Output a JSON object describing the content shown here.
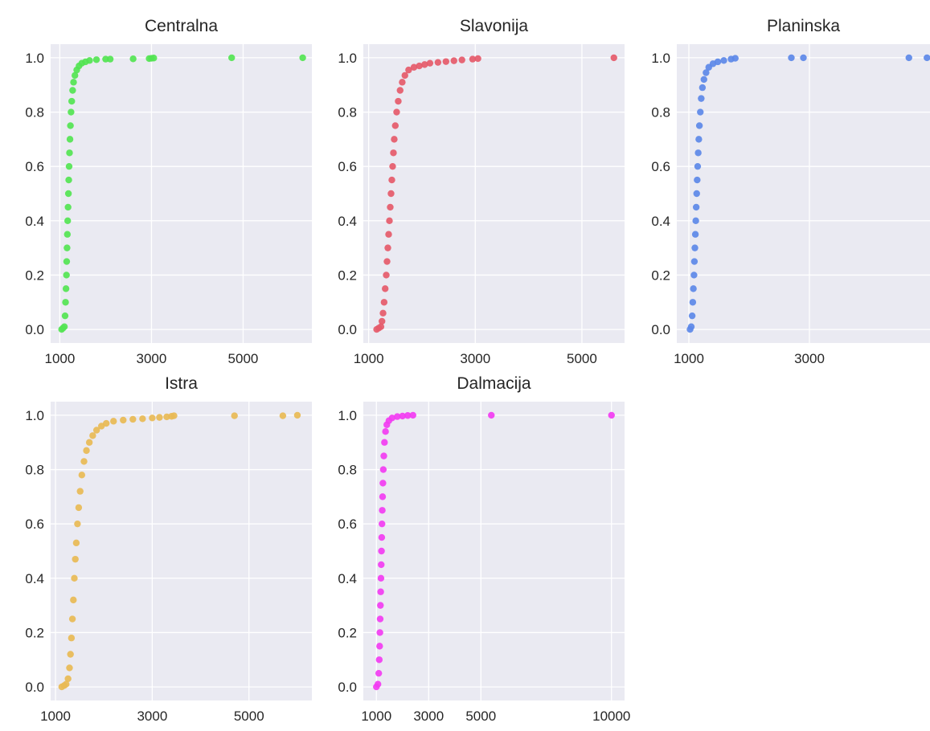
{
  "chart_data": [
    {
      "type": "scatter",
      "title": "Centralna",
      "color": "#53e453",
      "xlim": [
        800,
        6500
      ],
      "ylim": [
        -0.05,
        1.05
      ],
      "xticks": [
        1000,
        3000,
        5000
      ],
      "yticks": [
        0.0,
        0.2,
        0.4,
        0.6,
        0.8,
        1.0
      ],
      "points": [
        [
          1040,
          0.0
        ],
        [
          1070,
          0.005
        ],
        [
          1100,
          0.01
        ],
        [
          1115,
          0.05
        ],
        [
          1125,
          0.1
        ],
        [
          1135,
          0.15
        ],
        [
          1145,
          0.2
        ],
        [
          1150,
          0.25
        ],
        [
          1158,
          0.3
        ],
        [
          1165,
          0.35
        ],
        [
          1172,
          0.4
        ],
        [
          1180,
          0.45
        ],
        [
          1188,
          0.5
        ],
        [
          1195,
          0.55
        ],
        [
          1203,
          0.6
        ],
        [
          1212,
          0.65
        ],
        [
          1222,
          0.7
        ],
        [
          1232,
          0.75
        ],
        [
          1245,
          0.8
        ],
        [
          1260,
          0.84
        ],
        [
          1280,
          0.88
        ],
        [
          1300,
          0.91
        ],
        [
          1330,
          0.935
        ],
        [
          1370,
          0.955
        ],
        [
          1420,
          0.97
        ],
        [
          1480,
          0.98
        ],
        [
          1560,
          0.985
        ],
        [
          1650,
          0.99
        ],
        [
          1800,
          0.993
        ],
        [
          2000,
          0.995
        ],
        [
          2100,
          0.995
        ],
        [
          2600,
          0.996
        ],
        [
          2950,
          0.997
        ],
        [
          3000,
          0.998
        ],
        [
          3050,
          0.999
        ],
        [
          4750,
          1.0
        ],
        [
          6300,
          1.0
        ]
      ]
    },
    {
      "type": "scatter",
      "title": "Slavonija",
      "color": "#e55a6a",
      "xlim": [
        900,
        5800
      ],
      "ylim": [
        -0.05,
        1.05
      ],
      "xticks": [
        1000,
        3000,
        5000
      ],
      "yticks": [
        0.0,
        0.2,
        0.4,
        0.6,
        0.8,
        1.0
      ],
      "points": [
        [
          1150,
          0.0
        ],
        [
          1190,
          0.005
        ],
        [
          1230,
          0.01
        ],
        [
          1250,
          0.03
        ],
        [
          1270,
          0.06
        ],
        [
          1290,
          0.1
        ],
        [
          1310,
          0.15
        ],
        [
          1330,
          0.2
        ],
        [
          1345,
          0.25
        ],
        [
          1360,
          0.3
        ],
        [
          1375,
          0.35
        ],
        [
          1390,
          0.4
        ],
        [
          1405,
          0.45
        ],
        [
          1420,
          0.5
        ],
        [
          1435,
          0.55
        ],
        [
          1450,
          0.6
        ],
        [
          1465,
          0.65
        ],
        [
          1480,
          0.7
        ],
        [
          1500,
          0.75
        ],
        [
          1525,
          0.8
        ],
        [
          1555,
          0.84
        ],
        [
          1590,
          0.88
        ],
        [
          1630,
          0.91
        ],
        [
          1680,
          0.935
        ],
        [
          1750,
          0.955
        ],
        [
          1850,
          0.965
        ],
        [
          1950,
          0.97
        ],
        [
          2050,
          0.975
        ],
        [
          2150,
          0.98
        ],
        [
          2300,
          0.983
        ],
        [
          2450,
          0.986
        ],
        [
          2600,
          0.989
        ],
        [
          2750,
          0.992
        ],
        [
          2950,
          0.995
        ],
        [
          3050,
          0.997
        ],
        [
          5600,
          1.0
        ]
      ]
    },
    {
      "type": "scatter",
      "title": "Planinska",
      "color": "#5c88e8",
      "xlim": [
        800,
        5000
      ],
      "ylim": [
        -0.05,
        1.05
      ],
      "xticks": [
        1000,
        3000
      ],
      "yticks": [
        0.0,
        0.2,
        0.4,
        0.6,
        0.8,
        1.0
      ],
      "points": [
        [
          1020,
          0.0
        ],
        [
          1040,
          0.01
        ],
        [
          1055,
          0.05
        ],
        [
          1065,
          0.1
        ],
        [
          1075,
          0.15
        ],
        [
          1085,
          0.2
        ],
        [
          1092,
          0.25
        ],
        [
          1100,
          0.3
        ],
        [
          1108,
          0.35
        ],
        [
          1115,
          0.4
        ],
        [
          1122,
          0.45
        ],
        [
          1130,
          0.5
        ],
        [
          1138,
          0.55
        ],
        [
          1146,
          0.6
        ],
        [
          1155,
          0.65
        ],
        [
          1165,
          0.7
        ],
        [
          1175,
          0.75
        ],
        [
          1190,
          0.8
        ],
        [
          1205,
          0.85
        ],
        [
          1225,
          0.89
        ],
        [
          1250,
          0.92
        ],
        [
          1285,
          0.945
        ],
        [
          1330,
          0.965
        ],
        [
          1400,
          0.978
        ],
        [
          1480,
          0.985
        ],
        [
          1580,
          0.99
        ],
        [
          1700,
          0.995
        ],
        [
          1770,
          0.998
        ],
        [
          2700,
          1.0
        ],
        [
          2900,
          1.0
        ],
        [
          4650,
          1.0
        ],
        [
          4950,
          1.0
        ]
      ]
    },
    {
      "type": "scatter",
      "title": "Istra",
      "color": "#e8ba55",
      "xlim": [
        900,
        6300
      ],
      "ylim": [
        -0.05,
        1.05
      ],
      "xticks": [
        1000,
        3000,
        5000
      ],
      "yticks": [
        0.0,
        0.2,
        0.4,
        0.6,
        0.8,
        1.0
      ],
      "points": [
        [
          1130,
          0.0
        ],
        [
          1180,
          0.005
        ],
        [
          1220,
          0.01
        ],
        [
          1260,
          0.03
        ],
        [
          1290,
          0.07
        ],
        [
          1310,
          0.12
        ],
        [
          1330,
          0.18
        ],
        [
          1350,
          0.25
        ],
        [
          1370,
          0.32
        ],
        [
          1390,
          0.4
        ],
        [
          1410,
          0.47
        ],
        [
          1430,
          0.53
        ],
        [
          1455,
          0.6
        ],
        [
          1480,
          0.66
        ],
        [
          1510,
          0.72
        ],
        [
          1545,
          0.78
        ],
        [
          1590,
          0.83
        ],
        [
          1640,
          0.87
        ],
        [
          1700,
          0.9
        ],
        [
          1770,
          0.925
        ],
        [
          1850,
          0.945
        ],
        [
          1950,
          0.96
        ],
        [
          2050,
          0.97
        ],
        [
          2200,
          0.978
        ],
        [
          2400,
          0.982
        ],
        [
          2600,
          0.985
        ],
        [
          2800,
          0.987
        ],
        [
          3000,
          0.99
        ],
        [
          3150,
          0.992
        ],
        [
          3300,
          0.994
        ],
        [
          3400,
          0.996
        ],
        [
          3450,
          0.998
        ],
        [
          4700,
          0.998
        ],
        [
          5700,
          0.998
        ],
        [
          6000,
          1.0
        ]
      ]
    },
    {
      "type": "scatter",
      "title": "Dalmacija",
      "color": "#f23cf2",
      "xlim": [
        500,
        10500
      ],
      "ylim": [
        -0.05,
        1.05
      ],
      "xticks": [
        1000,
        3000,
        5000,
        10000
      ],
      "yticks": [
        0.0,
        0.2,
        0.4,
        0.6,
        0.8,
        1.0
      ],
      "points": [
        [
          1000,
          0.0
        ],
        [
          1060,
          0.01
        ],
        [
          1090,
          0.05
        ],
        [
          1110,
          0.1
        ],
        [
          1125,
          0.15
        ],
        [
          1135,
          0.2
        ],
        [
          1145,
          0.25
        ],
        [
          1155,
          0.3
        ],
        [
          1165,
          0.35
        ],
        [
          1175,
          0.4
        ],
        [
          1185,
          0.45
        ],
        [
          1195,
          0.5
        ],
        [
          1205,
          0.55
        ],
        [
          1215,
          0.6
        ],
        [
          1225,
          0.65
        ],
        [
          1238,
          0.7
        ],
        [
          1250,
          0.75
        ],
        [
          1265,
          0.8
        ],
        [
          1285,
          0.85
        ],
        [
          1310,
          0.9
        ],
        [
          1350,
          0.94
        ],
        [
          1400,
          0.965
        ],
        [
          1480,
          0.98
        ],
        [
          1600,
          0.99
        ],
        [
          1800,
          0.995
        ],
        [
          2000,
          0.997
        ],
        [
          2200,
          0.999
        ],
        [
          2400,
          1.0
        ],
        [
          5400,
          1.0
        ],
        [
          10000,
          1.0
        ]
      ]
    }
  ]
}
